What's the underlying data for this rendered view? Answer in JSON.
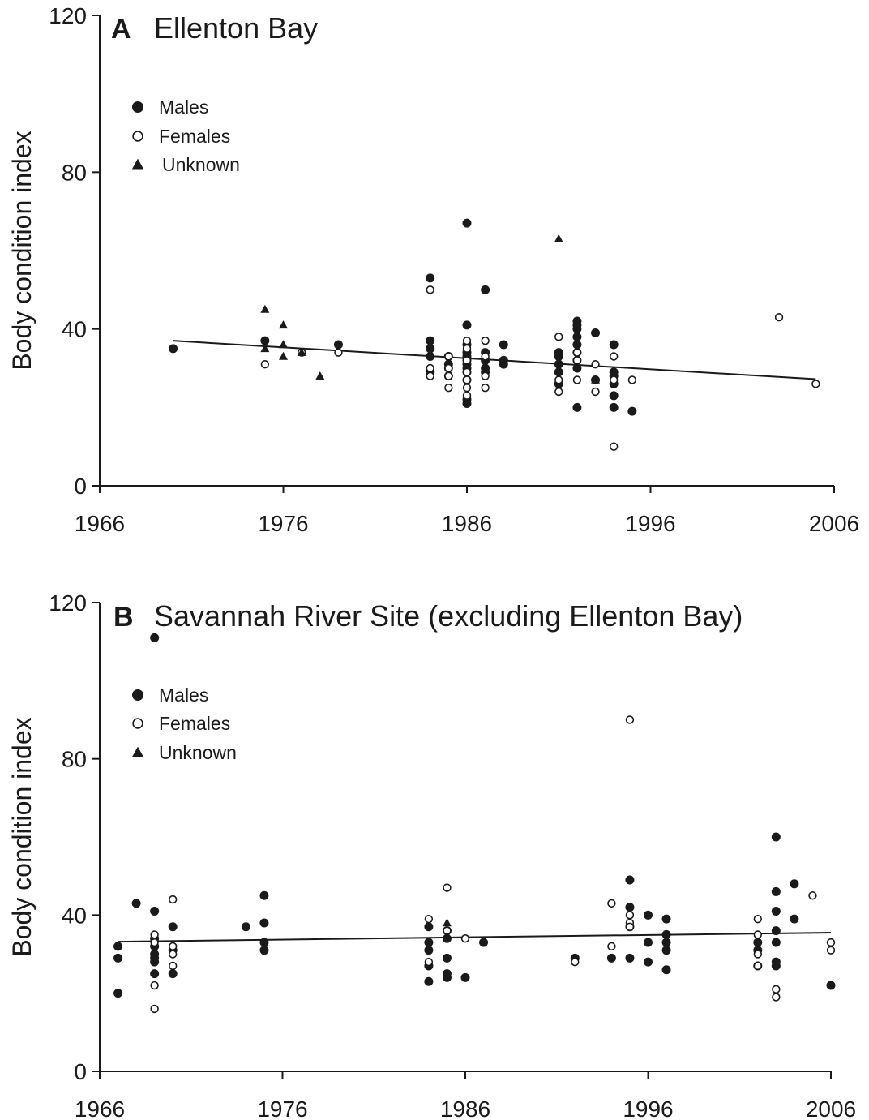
{
  "chart_data": [
    {
      "type": "scatter",
      "panel_letter": "A",
      "title": "Ellenton Bay",
      "xlabel": "",
      "ylabel": "Body condition index",
      "xlim": [
        1966,
        2006
      ],
      "ylim": [
        0,
        120
      ],
      "xticks": [
        1966,
        1976,
        1986,
        1996,
        2006
      ],
      "yticks": [
        0,
        40,
        80,
        120
      ],
      "grid": false,
      "legend_position": "top-left",
      "legend": [
        "Males",
        "Females",
        "Unknown"
      ],
      "trendline": {
        "x": [
          1970,
          2005
        ],
        "y": [
          37.0,
          27.2
        ]
      },
      "series": [
        {
          "name": "Males",
          "marker": "filled-circle",
          "x": [
            1970,
            1975,
            1979,
            1984,
            1984,
            1984,
            1984,
            1984,
            1985,
            1985,
            1985,
            1985,
            1986,
            1986,
            1986,
            1986,
            1986,
            1986,
            1986,
            1986,
            1986,
            1986,
            1986,
            1986,
            1987,
            1987,
            1987,
            1987,
            1987,
            1988,
            1988,
            1988,
            1991,
            1991,
            1991,
            1991,
            1991,
            1992,
            1992,
            1992,
            1992,
            1992,
            1992,
            1992,
            1992,
            1992,
            1993,
            1993,
            1994,
            1994,
            1994,
            1994,
            1994,
            1994,
            1995
          ],
          "y": [
            35,
            37,
            36,
            53,
            37,
            35,
            33,
            29,
            33,
            31,
            30,
            28,
            67,
            41,
            36,
            34,
            33,
            32,
            31,
            30,
            29,
            27,
            22,
            21,
            50,
            34,
            32,
            30,
            29,
            36,
            32,
            31,
            34,
            33,
            31,
            29,
            26,
            42,
            41,
            40,
            38,
            36,
            34,
            32,
            30,
            20,
            39,
            27,
            36,
            29,
            28,
            26,
            23,
            20,
            19
          ]
        },
        {
          "name": "Females",
          "marker": "open-circle",
          "x": [
            1975,
            1977,
            1979,
            1984,
            1984,
            1984,
            1985,
            1985,
            1985,
            1985,
            1986,
            1986,
            1986,
            1986,
            1986,
            1986,
            1986,
            1987,
            1987,
            1987,
            1987,
            1991,
            1991,
            1991,
            1992,
            1992,
            1992,
            1993,
            1993,
            1994,
            1994,
            1994,
            1995,
            2003,
            2005
          ],
          "y": [
            31,
            34,
            34,
            50,
            30,
            28,
            33,
            30,
            28,
            25,
            37,
            35,
            32,
            29,
            27,
            25,
            23,
            37,
            33,
            28,
            25,
            38,
            27,
            24,
            34,
            32,
            27,
            31,
            24,
            33,
            27,
            10,
            27,
            43,
            26
          ]
        },
        {
          "name": "Unknown",
          "marker": "filled-triangle",
          "x": [
            1975,
            1975,
            1976,
            1976,
            1976,
            1977,
            1978,
            1991,
            1993
          ],
          "y": [
            45,
            35,
            41,
            36,
            33,
            34,
            28,
            63,
            27
          ]
        }
      ]
    },
    {
      "type": "scatter",
      "panel_letter": "B",
      "title": "Savannah River Site (excluding Ellenton Bay)",
      "xlabel": "",
      "ylabel": "Body condition index",
      "xlim": [
        1966,
        2006
      ],
      "ylim": [
        0,
        120
      ],
      "xticks": [
        1966,
        1976,
        1986,
        1996,
        2006
      ],
      "yticks": [
        0,
        40,
        80,
        120
      ],
      "grid": false,
      "legend_position": "top-left",
      "legend": [
        "Males",
        "Females",
        "Unknown"
      ],
      "trendline": {
        "x": [
          1967,
          2006
        ],
        "y": [
          33.2,
          35.5
        ]
      },
      "series": [
        {
          "name": "Males",
          "marker": "filled-circle",
          "x": [
            1967,
            1967,
            1967,
            1968,
            1969,
            1969,
            1969,
            1969,
            1969,
            1969,
            1969,
            1969,
            1970,
            1970,
            1970,
            1974,
            1975,
            1975,
            1975,
            1975,
            1984,
            1984,
            1984,
            1984,
            1984,
            1985,
            1985,
            1985,
            1985,
            1985,
            1986,
            1987,
            1992,
            1994,
            1995,
            1995,
            1995,
            1995,
            1996,
            1996,
            1996,
            1997,
            1997,
            1997,
            1997,
            1997,
            2002,
            2002,
            2002,
            2003,
            2003,
            2003,
            2003,
            2003,
            2003,
            2003,
            2004,
            2004,
            2006
          ],
          "y": [
            32,
            29,
            20,
            43,
            111,
            41,
            34,
            32,
            30,
            29,
            28,
            25,
            37,
            31,
            25,
            37,
            45,
            38,
            33,
            31,
            37,
            33,
            31,
            27,
            23,
            36,
            34,
            29,
            25,
            24,
            24,
            33,
            29,
            29,
            49,
            42,
            37,
            29,
            40,
            33,
            28,
            39,
            35,
            33,
            31,
            26,
            33,
            31,
            27,
            60,
            46,
            41,
            36,
            33,
            28,
            27,
            48,
            39,
            22
          ]
        },
        {
          "name": "Females",
          "marker": "open-circle",
          "x": [
            1969,
            1969,
            1969,
            1969,
            1970,
            1970,
            1970,
            1970,
            1984,
            1984,
            1985,
            1985,
            1986,
            1992,
            1994,
            1994,
            1995,
            1995,
            1995,
            1995,
            2002,
            2002,
            2002,
            2002,
            2003,
            2003,
            2005,
            2006,
            2006
          ],
          "y": [
            35,
            33,
            22,
            16,
            44,
            32,
            30,
            27,
            39,
            28,
            47,
            36,
            34,
            28,
            43,
            32,
            90,
            40,
            38,
            37,
            39,
            35,
            30,
            27,
            21,
            19,
            45,
            33,
            31
          ]
        },
        {
          "name": "Unknown",
          "marker": "filled-triangle",
          "x": [
            1985
          ],
          "y": [
            38
          ]
        }
      ]
    }
  ]
}
